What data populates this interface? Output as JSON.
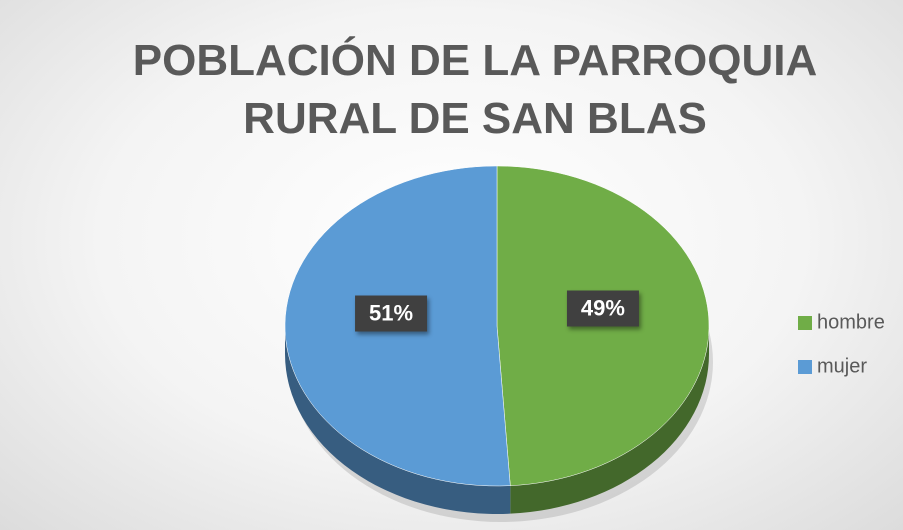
{
  "chart_data": {
    "type": "pie",
    "title": "POBLACIÓN DE LA PARROQUIA RURAL DE SAN BLAS",
    "categories": [
      "hombre",
      "mujer"
    ],
    "values": [
      49,
      51
    ],
    "value_labels": [
      "49%",
      "51%"
    ],
    "colors": [
      "#70ad47",
      "#5b9bd5"
    ],
    "legend": "right"
  }
}
